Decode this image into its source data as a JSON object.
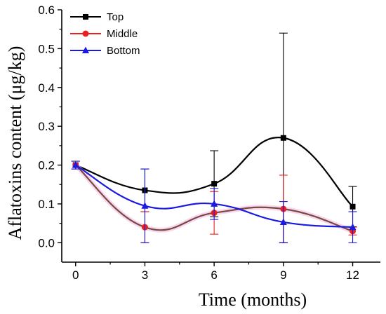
{
  "chart_data": {
    "type": "line",
    "xlabel": "Time (months)",
    "ylabel": "Aflatoxins content (μg/kg)",
    "x": [
      0,
      3,
      6,
      9,
      12
    ],
    "xlim": [
      -0.6,
      13.2
    ],
    "ylim": [
      -0.05,
      0.6
    ],
    "x_ticks": [
      "0",
      "3",
      "6",
      "9",
      "12"
    ],
    "y_ticks": [
      "0.0",
      "0.1",
      "0.2",
      "0.3",
      "0.4",
      "0.5",
      "0.6"
    ],
    "legend_position": "top-left",
    "series": [
      {
        "name": "Top",
        "marker": "square",
        "color": "#000000",
        "values": [
          0.2,
          0.135,
          0.152,
          0.27,
          0.093
        ],
        "err_plus": [
          0.01,
          0.055,
          0.085,
          0.27,
          0.052
        ],
        "err_minus": [
          0.01,
          0.055,
          0.085,
          0.27,
          0.052
        ]
      },
      {
        "name": "Middle",
        "marker": "circle",
        "color": "#e8201e",
        "line_color": "#7a4a3a",
        "values": [
          0.2,
          0.04,
          0.077,
          0.087,
          0.03
        ],
        "err_plus": [
          0.01,
          0.04,
          0.055,
          0.087,
          0.01
        ],
        "err_minus": [
          0.01,
          0.04,
          0.055,
          0.087,
          0.01
        ]
      },
      {
        "name": "Bottom",
        "marker": "triangle",
        "color": "#1a1ae0",
        "values": [
          0.2,
          0.095,
          0.1,
          0.053,
          0.04
        ],
        "err_plus": [
          0.01,
          0.095,
          0.04,
          0.053,
          0.04
        ],
        "err_minus": [
          0.01,
          0.095,
          0.04,
          0.053,
          0.04
        ]
      }
    ]
  }
}
